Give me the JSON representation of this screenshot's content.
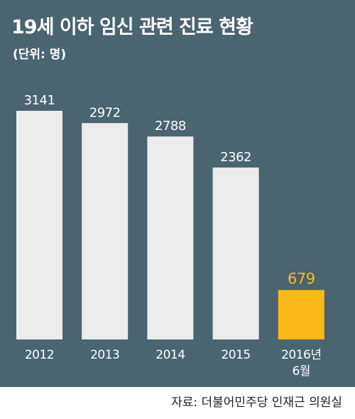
{
  "title": "19세 이하 임신 관련 진료 현황",
  "subtitle": "(단위: 명)",
  "source": "자료: 더불어민주당 인재근 의원실",
  "colors": {
    "background": "#4a6470",
    "bar": "#ececec",
    "highlight": "#fbb917",
    "label": "#ffffff",
    "highlight_label": "#fbb917"
  },
  "chart_data": {
    "type": "bar",
    "title": "19세 이하 임신 관련 진료 현황",
    "subtitle": "(단위: 명)",
    "categories": [
      "2012",
      "2013",
      "2014",
      "2015",
      "2016년 6월"
    ],
    "category_lines": [
      [
        "2012"
      ],
      [
        "2013"
      ],
      [
        "2014"
      ],
      [
        "2015"
      ],
      [
        "2016년",
        "6월"
      ]
    ],
    "values": [
      3141,
      2972,
      2788,
      2362,
      679
    ],
    "data_labels": [
      "3141",
      "2972",
      "2788",
      "2362",
      "679"
    ],
    "highlight_index": 4,
    "ylim": [
      0,
      3141
    ],
    "grid": false,
    "legend": "none"
  }
}
